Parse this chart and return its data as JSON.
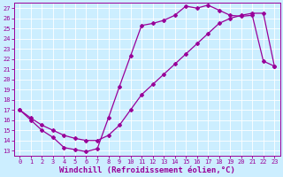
{
  "xlabel": "Windchill (Refroidissement éolien,°C)",
  "xlim": [
    -0.5,
    23.5
  ],
  "ylim": [
    12.5,
    27.5
  ],
  "xticks": [
    0,
    1,
    2,
    3,
    4,
    5,
    6,
    7,
    8,
    9,
    10,
    11,
    12,
    13,
    14,
    15,
    16,
    17,
    18,
    19,
    20,
    21,
    22,
    23
  ],
  "yticks": [
    13,
    14,
    15,
    16,
    17,
    18,
    19,
    20,
    21,
    22,
    23,
    24,
    25,
    26,
    27
  ],
  "bg_color": "#cceeff",
  "line_color": "#990099",
  "grid_color": "#aadddd",
  "line1_x": [
    0,
    1,
    2,
    3,
    4,
    5,
    6,
    7,
    8,
    9,
    10,
    11,
    12,
    13,
    14,
    15,
    16,
    17,
    18,
    19,
    20,
    21,
    22,
    23
  ],
  "line1_y": [
    17.0,
    16.0,
    15.0,
    14.3,
    13.3,
    13.1,
    12.9,
    13.2,
    16.2,
    19.3,
    22.3,
    25.3,
    25.5,
    25.8,
    26.3,
    27.2,
    27.0,
    27.3,
    26.8,
    26.3,
    26.2,
    26.3,
    21.8,
    21.3
  ],
  "line2_x": [
    0,
    1,
    2,
    3,
    4,
    5,
    6,
    7,
    8,
    9,
    10,
    11,
    12,
    13,
    14,
    15,
    16,
    17,
    18,
    19,
    20,
    21,
    22,
    23
  ],
  "line2_y": [
    17.0,
    16.2,
    15.5,
    15.0,
    14.5,
    14.2,
    14.0,
    14.0,
    14.5,
    15.5,
    17.0,
    18.5,
    19.5,
    20.5,
    21.5,
    22.5,
    23.5,
    24.5,
    25.5,
    26.0,
    26.3,
    26.5,
    26.5,
    21.3
  ],
  "font_family": "monospace",
  "tick_fontsize": 5.0,
  "xlabel_fontsize": 6.5,
  "marker": "D",
  "markersize": 2.0,
  "linewidth": 0.9
}
